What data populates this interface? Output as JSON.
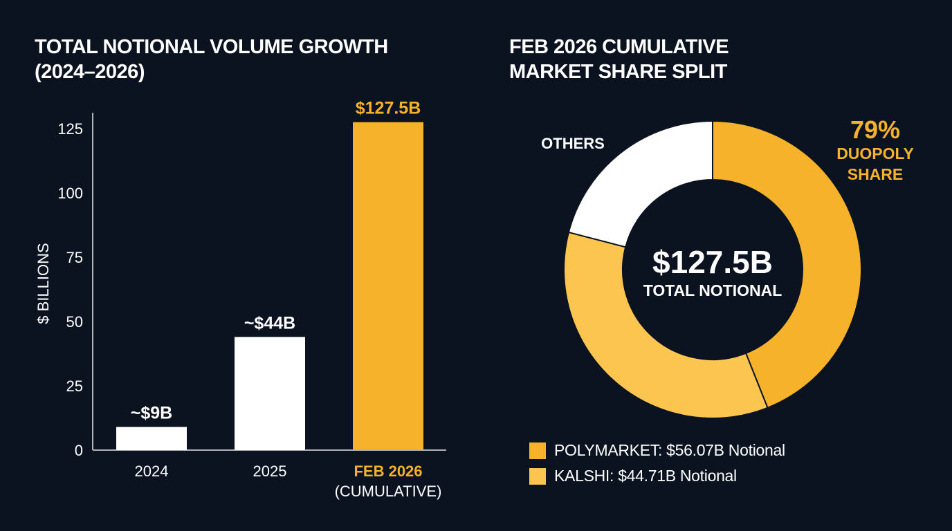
{
  "colors": {
    "background": "#0c1320",
    "white": "#ffffff",
    "accent": "#f6b22a",
    "accent_light": "#fcc54f"
  },
  "chart_data": [
    {
      "type": "bar",
      "title_lines": [
        "TOTAL NOTIONAL VOLUME GROWTH",
        "(2024–2026)"
      ],
      "ylabel": "$ BILLIONS",
      "xlabel": "",
      "ylim": [
        0,
        125
      ],
      "yticks": [
        0,
        25,
        50,
        75,
        100,
        125
      ],
      "grid": false,
      "categories": [
        {
          "lines": [
            "2024"
          ]
        },
        {
          "lines": [
            "2025"
          ]
        },
        {
          "lines": [
            "FEB 2026",
            "(CUMULATIVE)"
          ]
        }
      ],
      "values": [
        9,
        44,
        127.5
      ],
      "data_labels": [
        "~$9B",
        "~$44B",
        "$127.5B"
      ],
      "bar_colors": [
        "#ffffff",
        "#ffffff",
        "#f6b22a"
      ],
      "label_colors": [
        "#ffffff",
        "#ffffff",
        "#f6b22a"
      ]
    },
    {
      "type": "pie",
      "donut": true,
      "title_lines": [
        "FEB 2026 CUMULATIVE",
        "MARKET SHARE SPLIT"
      ],
      "total": 127.5,
      "center_value": "$127.5B",
      "center_label": "TOTAL NOTIONAL",
      "slices": [
        {
          "name": "POLYMARKET",
          "value": 56.07,
          "color": "#f6b22a"
        },
        {
          "name": "KALSHI",
          "value": 44.71,
          "color": "#fcc54f"
        },
        {
          "name": "OTHERS",
          "value": 26.72,
          "color": "#ffffff"
        }
      ],
      "others_label": "OTHERS",
      "annotation": {
        "value": "79%",
        "lines": [
          "DUOPOLY",
          "SHARE"
        ]
      },
      "legend": [
        {
          "label": "POLYMARKET: $56.07B Notional",
          "color": "#f6b22a"
        },
        {
          "label": "KALSHI: $44.71B Notional",
          "color": "#fcc54f"
        }
      ],
      "legend_position": "bottom"
    }
  ]
}
